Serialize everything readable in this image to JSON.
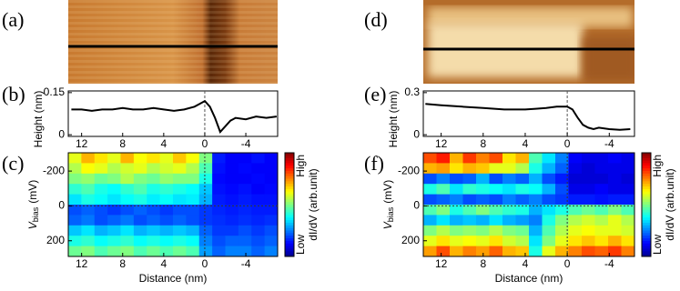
{
  "images": [
    {
      "label": "(a)"
    },
    {
      "label": "(d)"
    }
  ],
  "chart_data": [
    {
      "type": "line",
      "label": "(b)",
      "ylabel": "Height (nm)",
      "x": [
        13,
        12,
        11,
        10,
        9,
        8,
        7,
        6,
        5,
        4,
        3,
        2,
        1,
        0.5,
        0,
        -0.5,
        -1,
        -1.5,
        -2,
        -2.5,
        -3,
        -4,
        -5,
        -6,
        -7
      ],
      "series": [
        {
          "color": "#000000",
          "values": [
            0.09,
            0.09,
            0.085,
            0.09,
            0.09,
            0.095,
            0.09,
            0.09,
            0.095,
            0.09,
            0.085,
            0.09,
            0.1,
            0.11,
            0.12,
            0.1,
            0.06,
            0.01,
            0.03,
            0.05,
            0.06,
            0.055,
            0.065,
            0.06,
            0.065
          ]
        }
      ],
      "xlim": [
        13.3,
        -7.1
      ],
      "xticks": [
        12,
        8,
        4,
        0,
        -4
      ],
      "ylim": [
        -0.006,
        0.156
      ],
      "yticks": [
        0,
        0.15
      ]
    },
    {
      "type": "heatmap",
      "label": "(c)",
      "ylabel": "V",
      "ylabel_sub": "bias",
      "ylabel_unit": "(mV)",
      "xlabel": "Distance (nm)",
      "colorbar_label": "dI/dV (arb.unit)",
      "colorbar_high": "High",
      "colorbar_low": "Low",
      "colormap": [
        "#00008f",
        "#0000ff",
        "#0080ff",
        "#00ffff",
        "#80ff80",
        "#ffff00",
        "#ff8000",
        "#ff0000",
        "#800000"
      ],
      "xlim": [
        13.3,
        -7.1
      ],
      "xticks": [
        12,
        8,
        4,
        0,
        -4
      ],
      "ylim": [
        -305,
        290
      ],
      "yticks": [
        -200,
        0,
        200
      ],
      "zlim": [
        0,
        1
      ],
      "z": [
        [
          0.6,
          0.7,
          0.65,
          0.6,
          0.7,
          0.62,
          0.65,
          0.6,
          0.68,
          0.62,
          0.5,
          0.15,
          0.12,
          0.12,
          0.14,
          0.12
        ],
        [
          0.55,
          0.62,
          0.6,
          0.55,
          0.58,
          0.6,
          0.55,
          0.58,
          0.6,
          0.55,
          0.45,
          0.14,
          0.12,
          0.13,
          0.12,
          0.12
        ],
        [
          0.5,
          0.52,
          0.48,
          0.5,
          0.55,
          0.5,
          0.48,
          0.52,
          0.5,
          0.5,
          0.4,
          0.13,
          0.12,
          0.12,
          0.13,
          0.12
        ],
        [
          0.42,
          0.45,
          0.4,
          0.38,
          0.42,
          0.45,
          0.4,
          0.42,
          0.4,
          0.38,
          0.32,
          0.14,
          0.13,
          0.14,
          0.12,
          0.13
        ],
        [
          0.35,
          0.4,
          0.38,
          0.35,
          0.38,
          0.4,
          0.36,
          0.38,
          0.35,
          0.36,
          0.3,
          0.15,
          0.14,
          0.15,
          0.14,
          0.14
        ],
        [
          0.2,
          0.22,
          0.2,
          0.18,
          0.2,
          0.22,
          0.2,
          0.18,
          0.2,
          0.2,
          0.18,
          0.16,
          0.15,
          0.16,
          0.15,
          0.15
        ],
        [
          0.22,
          0.24,
          0.2,
          0.22,
          0.24,
          0.2,
          0.22,
          0.2,
          0.22,
          0.2,
          0.18,
          0.17,
          0.16,
          0.17,
          0.16,
          0.17
        ],
        [
          0.32,
          0.35,
          0.3,
          0.32,
          0.35,
          0.3,
          0.32,
          0.3,
          0.32,
          0.3,
          0.22,
          0.18,
          0.18,
          0.2,
          0.18,
          0.2
        ],
        [
          0.4,
          0.42,
          0.38,
          0.4,
          0.42,
          0.38,
          0.4,
          0.38,
          0.4,
          0.38,
          0.25,
          0.2,
          0.22,
          0.22,
          0.2,
          0.22
        ],
        [
          0.48,
          0.5,
          0.45,
          0.48,
          0.5,
          0.45,
          0.48,
          0.45,
          0.48,
          0.45,
          0.28,
          0.22,
          0.25,
          0.25,
          0.22,
          0.25
        ]
      ]
    },
    {
      "type": "line",
      "label": "(e)",
      "ylabel": "Height (nm)",
      "x": [
        13.5,
        12,
        10,
        8,
        6,
        5,
        4,
        3,
        2,
        1,
        0,
        -0.5,
        -1,
        -1.5,
        -2,
        -2.5,
        -3,
        -4,
        -5,
        -6
      ],
      "series": [
        {
          "color": "#000000",
          "values": [
            0.22,
            0.21,
            0.2,
            0.19,
            0.18,
            0.18,
            0.18,
            0.185,
            0.19,
            0.2,
            0.2,
            0.18,
            0.12,
            0.07,
            0.05,
            0.04,
            0.05,
            0.04,
            0.035,
            0.04
          ]
        }
      ],
      "xlim": [
        13.7,
        -6.4
      ],
      "xticks": [
        12,
        8,
        4,
        0,
        -4
      ],
      "ylim": [
        -0.012,
        0.312
      ],
      "yticks": [
        0,
        0.3
      ]
    },
    {
      "type": "heatmap",
      "label": "(f)",
      "ylabel": "V",
      "ylabel_sub": "bias",
      "ylabel_unit": "(mV)",
      "xlabel": "Distance (nm)",
      "colorbar_label": "dI/dV (arb.unit)",
      "colorbar_high": "High",
      "colorbar_low": "Low",
      "colormap": [
        "#00008f",
        "#0000ff",
        "#0080ff",
        "#00ffff",
        "#80ff80",
        "#ffff00",
        "#ff8000",
        "#ff0000",
        "#800000"
      ],
      "xlim": [
        13.7,
        -6.4
      ],
      "xticks": [
        12,
        8,
        4,
        0,
        -4
      ],
      "ylim": [
        -305,
        290
      ],
      "yticks": [
        -200,
        0,
        200
      ],
      "zlim": [
        0,
        1
      ],
      "z": [
        [
          0.8,
          0.85,
          0.7,
          0.82,
          0.75,
          0.8,
          0.65,
          0.7,
          0.45,
          0.35,
          0.25,
          0.12,
          0.1,
          0.1,
          0.12,
          0.1
        ],
        [
          0.7,
          0.72,
          0.65,
          0.7,
          0.68,
          0.6,
          0.6,
          0.55,
          0.4,
          0.3,
          0.22,
          0.1,
          0.08,
          0.1,
          0.1,
          0.1
        ],
        [
          0.2,
          0.25,
          0.2,
          0.22,
          0.3,
          0.2,
          0.25,
          0.22,
          0.3,
          0.2,
          0.15,
          0.08,
          0.08,
          0.08,
          0.1,
          0.08
        ],
        [
          0.4,
          0.45,
          0.35,
          0.42,
          0.4,
          0.38,
          0.35,
          0.4,
          0.38,
          0.3,
          0.2,
          0.1,
          0.1,
          0.12,
          0.1,
          0.1
        ],
        [
          0.2,
          0.22,
          0.25,
          0.2,
          0.22,
          0.2,
          0.25,
          0.22,
          0.25,
          0.2,
          0.18,
          0.15,
          0.15,
          0.14,
          0.15,
          0.15
        ],
        [
          0.45,
          0.5,
          0.4,
          0.45,
          0.5,
          0.45,
          0.42,
          0.4,
          0.3,
          0.35,
          0.4,
          0.45,
          0.48,
          0.45,
          0.5,
          0.45
        ],
        [
          0.3,
          0.35,
          0.3,
          0.32,
          0.3,
          0.35,
          0.3,
          0.28,
          0.25,
          0.4,
          0.5,
          0.55,
          0.58,
          0.55,
          0.6,
          0.55
        ],
        [
          0.5,
          0.55,
          0.5,
          0.52,
          0.5,
          0.55,
          0.5,
          0.48,
          0.3,
          0.45,
          0.55,
          0.6,
          0.62,
          0.6,
          0.6,
          0.58
        ],
        [
          0.6,
          0.65,
          0.6,
          0.62,
          0.6,
          0.65,
          0.58,
          0.55,
          0.35,
          0.5,
          0.6,
          0.65,
          0.68,
          0.65,
          0.7,
          0.65
        ],
        [
          0.72,
          0.8,
          0.7,
          0.75,
          0.72,
          0.78,
          0.7,
          0.68,
          0.4,
          0.6,
          0.7,
          0.75,
          0.8,
          0.78,
          0.82,
          0.75
        ]
      ]
    }
  ]
}
